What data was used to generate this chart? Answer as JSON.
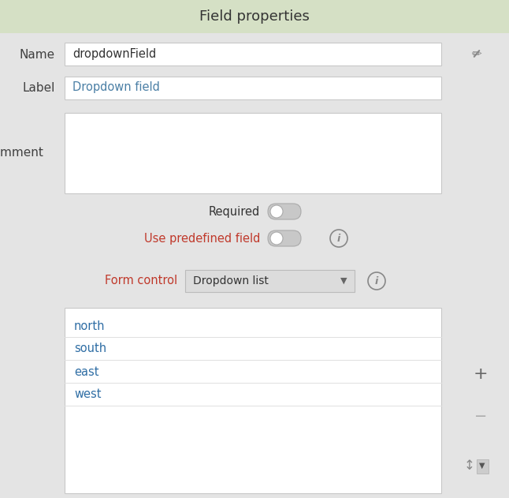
{
  "title": "Field properties",
  "title_bg": "#d5e0c5",
  "bg_color": "#e4e4e4",
  "white": "#ffffff",
  "border_color": "#c8c8c8",
  "label_color": "#404040",
  "blue_label": "#4a7fa5",
  "red_label": "#c0392b",
  "dark_text": "#333333",
  "name_value": "dropdownField",
  "label_value": "Dropdown field",
  "required_label": "Required",
  "predefined_label": "Use predefined field",
  "form_control_label": "Form control",
  "dropdown_value": "Dropdown list",
  "dropdown_items": [
    "north",
    "south",
    "east",
    "west"
  ],
  "item_text_color": "#2e6da4",
  "toggle_bg": "#c8c8c8",
  "toggle_border": "#aaaaaa",
  "figsize": [
    6.46,
    6.31
  ],
  "dpi": 100
}
